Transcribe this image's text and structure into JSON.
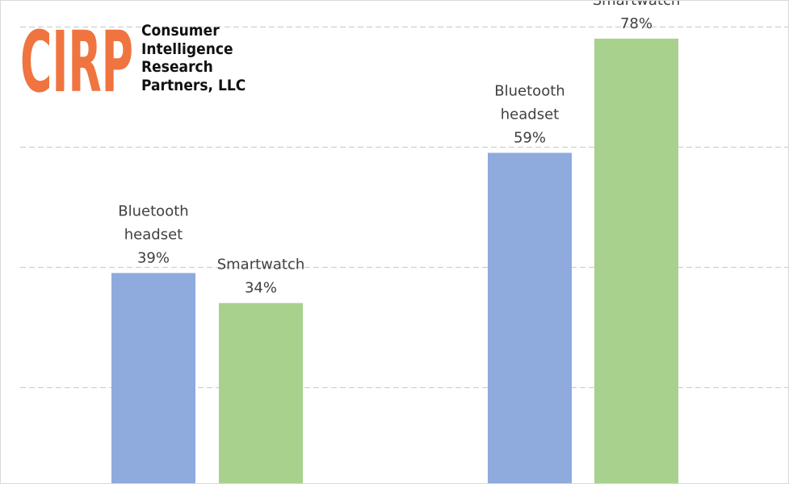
{
  "logo": {
    "mark_text": "CIRP",
    "mark_color": "#f07440",
    "name_lines": [
      "Consumer",
      "Intelligence",
      "Research",
      "Partners, LLC"
    ]
  },
  "chart_data": {
    "type": "bar",
    "groups": [
      {
        "bars": [
          {
            "name_lines": [
              "Bluetooth",
              "headset"
            ],
            "value": 39,
            "value_label": "39%",
            "color": "#8faadc"
          },
          {
            "name_lines": [
              "Smartwatch"
            ],
            "value": 34,
            "value_label": "34%",
            "color": "#a9d18e"
          }
        ]
      },
      {
        "bars": [
          {
            "name_lines": [
              "Bluetooth",
              "headset"
            ],
            "value": 59,
            "value_label": "59%",
            "color": "#8faadc"
          },
          {
            "name_lines": [
              "Smartwatch"
            ],
            "value": 78,
            "value_label": "78%",
            "color": "#a9d18e"
          }
        ]
      }
    ],
    "ylim": [
      0,
      80
    ],
    "y_gridlines": [
      20,
      40,
      60,
      80
    ],
    "grid": true,
    "gridline_style": "dashed",
    "legend": "none"
  }
}
